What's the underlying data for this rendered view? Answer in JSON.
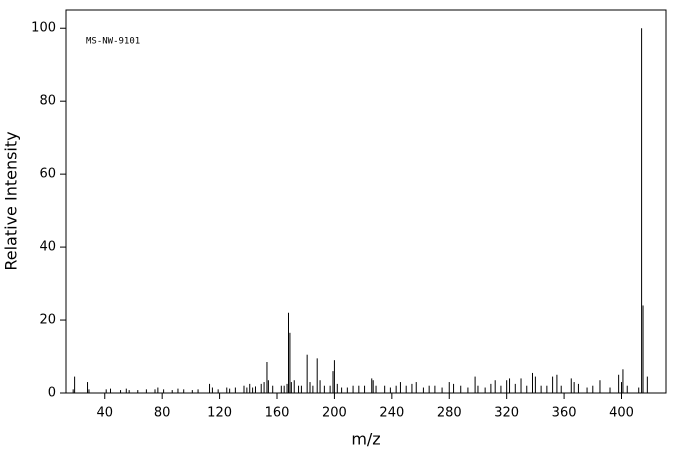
{
  "chart_data": {
    "type": "stem",
    "annotation": "MS-NW-9101",
    "x_label": "m/z",
    "y_label": "Relative Intensity",
    "x": [
      18,
      19,
      28,
      29,
      41,
      44,
      51,
      55,
      57,
      63,
      69,
      75,
      77,
      81,
      87,
      91,
      95,
      101,
      105,
      113,
      115,
      119,
      125,
      127,
      131,
      137,
      139,
      141,
      143,
      145,
      149,
      151,
      153,
      154,
      157,
      163,
      165,
      167,
      168,
      169,
      170,
      172,
      175,
      177,
      181,
      183,
      185,
      188,
      190,
      193,
      197,
      199,
      200,
      202,
      205,
      209,
      213,
      217,
      221,
      226,
      227,
      229,
      235,
      239,
      243,
      246,
      250,
      254,
      257,
      262,
      266,
      270,
      275,
      280,
      283,
      288,
      293,
      298,
      300,
      305,
      309,
      312,
      316,
      320,
      322,
      326,
      330,
      334,
      338,
      340,
      344,
      348,
      352,
      355,
      358,
      365,
      367,
      370,
      376,
      380,
      385,
      392,
      398,
      400,
      401,
      404,
      412,
      414,
      415,
      418
    ],
    "values": [
      1,
      4.5,
      3,
      1,
      1,
      1.2,
      0.8,
      1.2,
      0.8,
      0.8,
      1,
      1,
      1.5,
      1,
      0.8,
      1.2,
      1,
      0.8,
      1,
      2.5,
      1.5,
      1,
      1.5,
      1.2,
      1.5,
      2,
      1.5,
      2.5,
      1.5,
      1.8,
      2.5,
      3,
      8.5,
      3.5,
      2,
      2,
      2,
      2.5,
      22,
      16.5,
      3,
      3.5,
      2,
      2,
      10.5,
      3,
      2,
      9.5,
      3.5,
      2,
      2,
      6,
      9,
      2.5,
      1.5,
      1.5,
      2,
      2,
      2,
      4,
      3.5,
      2,
      2,
      1.5,
      2,
      3,
      2,
      2.5,
      3,
      1.5,
      2,
      2,
      1.5,
      3,
      2.5,
      2,
      1.5,
      4.5,
      2,
      1.5,
      2.5,
      3.5,
      2,
      3.5,
      4,
      2.5,
      4,
      2,
      5.5,
      4.5,
      2,
      2,
      4.5,
      5,
      2,
      4,
      3,
      2.5,
      1.5,
      2,
      3.5,
      1.5,
      5,
      3,
      6.5,
      2,
      1.5,
      100,
      24,
      4.5
    ],
    "color": "#000000",
    "xlim": [
      13,
      431
    ],
    "ylim": [
      0,
      105
    ],
    "xticks": [
      40,
      80,
      120,
      160,
      200,
      240,
      280,
      320,
      360,
      400
    ],
    "yticks": [
      0,
      20,
      40,
      60,
      80,
      100
    ]
  }
}
